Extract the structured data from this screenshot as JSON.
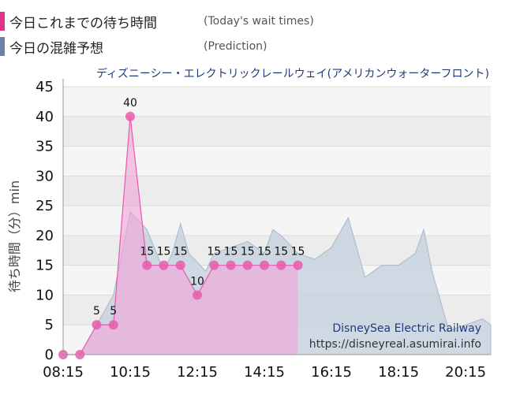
{
  "legend": {
    "today_label": "今日これまでの待ち時間",
    "today_sub": "(Today's wait times)",
    "pred_label": "今日の混雑予想",
    "pred_sub": "(Prediction)"
  },
  "chart_data": {
    "type": "area",
    "title": "ディズニーシー・エレクトリックレールウェイ(アメリカンウォーターフロント)",
    "ylabel": "待ち時間（分）min",
    "ylim": [
      0,
      45
    ],
    "yticks": [
      "0",
      "5",
      "10",
      "15",
      "20",
      "25",
      "30",
      "35",
      "40",
      "45"
    ],
    "xlim": [
      "08:15",
      "21:00"
    ],
    "xticks": [
      "08:15",
      "10:15",
      "12:15",
      "14:15",
      "16:15",
      "18:15",
      "20:15"
    ],
    "grid": true,
    "series": [
      {
        "type": "line",
        "x": [
          "08:15",
          "08:45",
          "09:15",
          "09:45",
          "10:15",
          "10:45",
          "11:15",
          "11:45",
          "12:15",
          "12:45",
          "13:15",
          "13:45",
          "14:15",
          "14:45",
          "15:15"
        ],
        "values": [
          0,
          0,
          5,
          5,
          40,
          15,
          15,
          15,
          10,
          15,
          15,
          15,
          15,
          15,
          15
        ]
      },
      {
        "type": "area",
        "x": [
          "08:15",
          "08:45",
          "09:15",
          "09:45",
          "10:00",
          "10:15",
          "10:45",
          "11:15",
          "11:30",
          "11:45",
          "12:00",
          "12:30",
          "12:45",
          "13:15",
          "13:45",
          "14:15",
          "14:30",
          "14:45",
          "15:15",
          "15:45",
          "16:15",
          "16:45",
          "17:15",
          "17:30",
          "17:45",
          "18:15",
          "18:45",
          "19:00",
          "19:15",
          "19:45",
          "20:15",
          "20:45",
          "21:00"
        ],
        "values": [
          0,
          0,
          5,
          10,
          17,
          24,
          21,
          14,
          17,
          22,
          17,
          14,
          17,
          18,
          19,
          17,
          21,
          20,
          17,
          16,
          18,
          23,
          13,
          14,
          15,
          15,
          17,
          21,
          14,
          4,
          5,
          6,
          5
        ]
      }
    ],
    "watermark": {
      "line1": "DisneySea Electric Railway",
      "line2": "https://disneyreal.asumirai.info"
    },
    "colors": {
      "actual": "#e85aac",
      "actual_fill": "#f0a8d8",
      "prediction_fill": "#c8d4e0",
      "prediction_line": "#a8b8c8",
      "today_swatch": "#e0338a",
      "pred_swatch": "#6e7fa8",
      "title": "#1f3a7a"
    }
  }
}
